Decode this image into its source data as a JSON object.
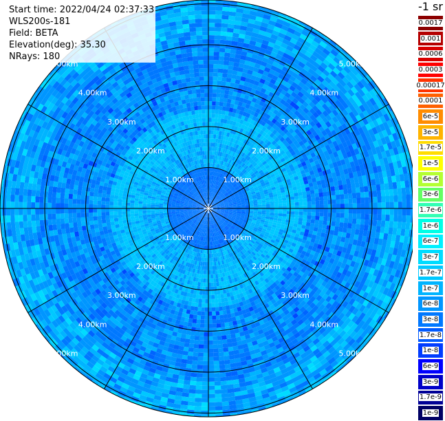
{
  "header": {
    "start_time": "Start time: 2022/04/24 02:37:33",
    "instrument": "WLS200s-181",
    "field": "Field: BETA",
    "elevation": "Elevation(deg): 35.30",
    "nrays": "NRays: 180"
  },
  "units_label": "-1 sr",
  "range_labels": [
    "1.00km",
    "2.00km",
    "3.00km",
    "4.00km",
    "5.00km"
  ],
  "legend": [
    {
      "label": "0.0017",
      "color": "#8c0000"
    },
    {
      "label": "0.001",
      "color": "#b40000"
    },
    {
      "label": "0.0006",
      "color": "#d80000"
    },
    {
      "label": "0.0003",
      "color": "#ff0000"
    },
    {
      "label": "0.00017",
      "color": "#ff3300"
    },
    {
      "label": "0.0001",
      "color": "#ff6000"
    },
    {
      "label": "6e-5",
      "color": "#ff8c00"
    },
    {
      "label": "3e-5",
      "color": "#ffb400"
    },
    {
      "label": "1.7e-5",
      "color": "#ffdc00"
    },
    {
      "label": "1e-5",
      "color": "#ffff00"
    },
    {
      "label": "6e-6",
      "color": "#b4ff32"
    },
    {
      "label": "3e-6",
      "color": "#64ff64"
    },
    {
      "label": "1.7e-6",
      "color": "#32ffb4"
    },
    {
      "label": "1e-6",
      "color": "#00ffe6"
    },
    {
      "label": "6e-7",
      "color": "#00f0ff"
    },
    {
      "label": "3e-7",
      "color": "#00dcff"
    },
    {
      "label": "1.7e-7",
      "color": "#00c8ff"
    },
    {
      "label": "1e-7",
      "color": "#00b4ff"
    },
    {
      "label": "6e-8",
      "color": "#0096ff"
    },
    {
      "label": "3e-8",
      "color": "#0078ff"
    },
    {
      "label": "1.7e-8",
      "color": "#005aff"
    },
    {
      "label": "1e-8",
      "color": "#003cff"
    },
    {
      "label": "6e-9",
      "color": "#0000ff"
    },
    {
      "label": "3e-9",
      "color": "#0000c8"
    },
    {
      "label": "1.7e-9",
      "color": "#000096"
    },
    {
      "label": "1e-9",
      "color": "#000064"
    }
  ]
}
